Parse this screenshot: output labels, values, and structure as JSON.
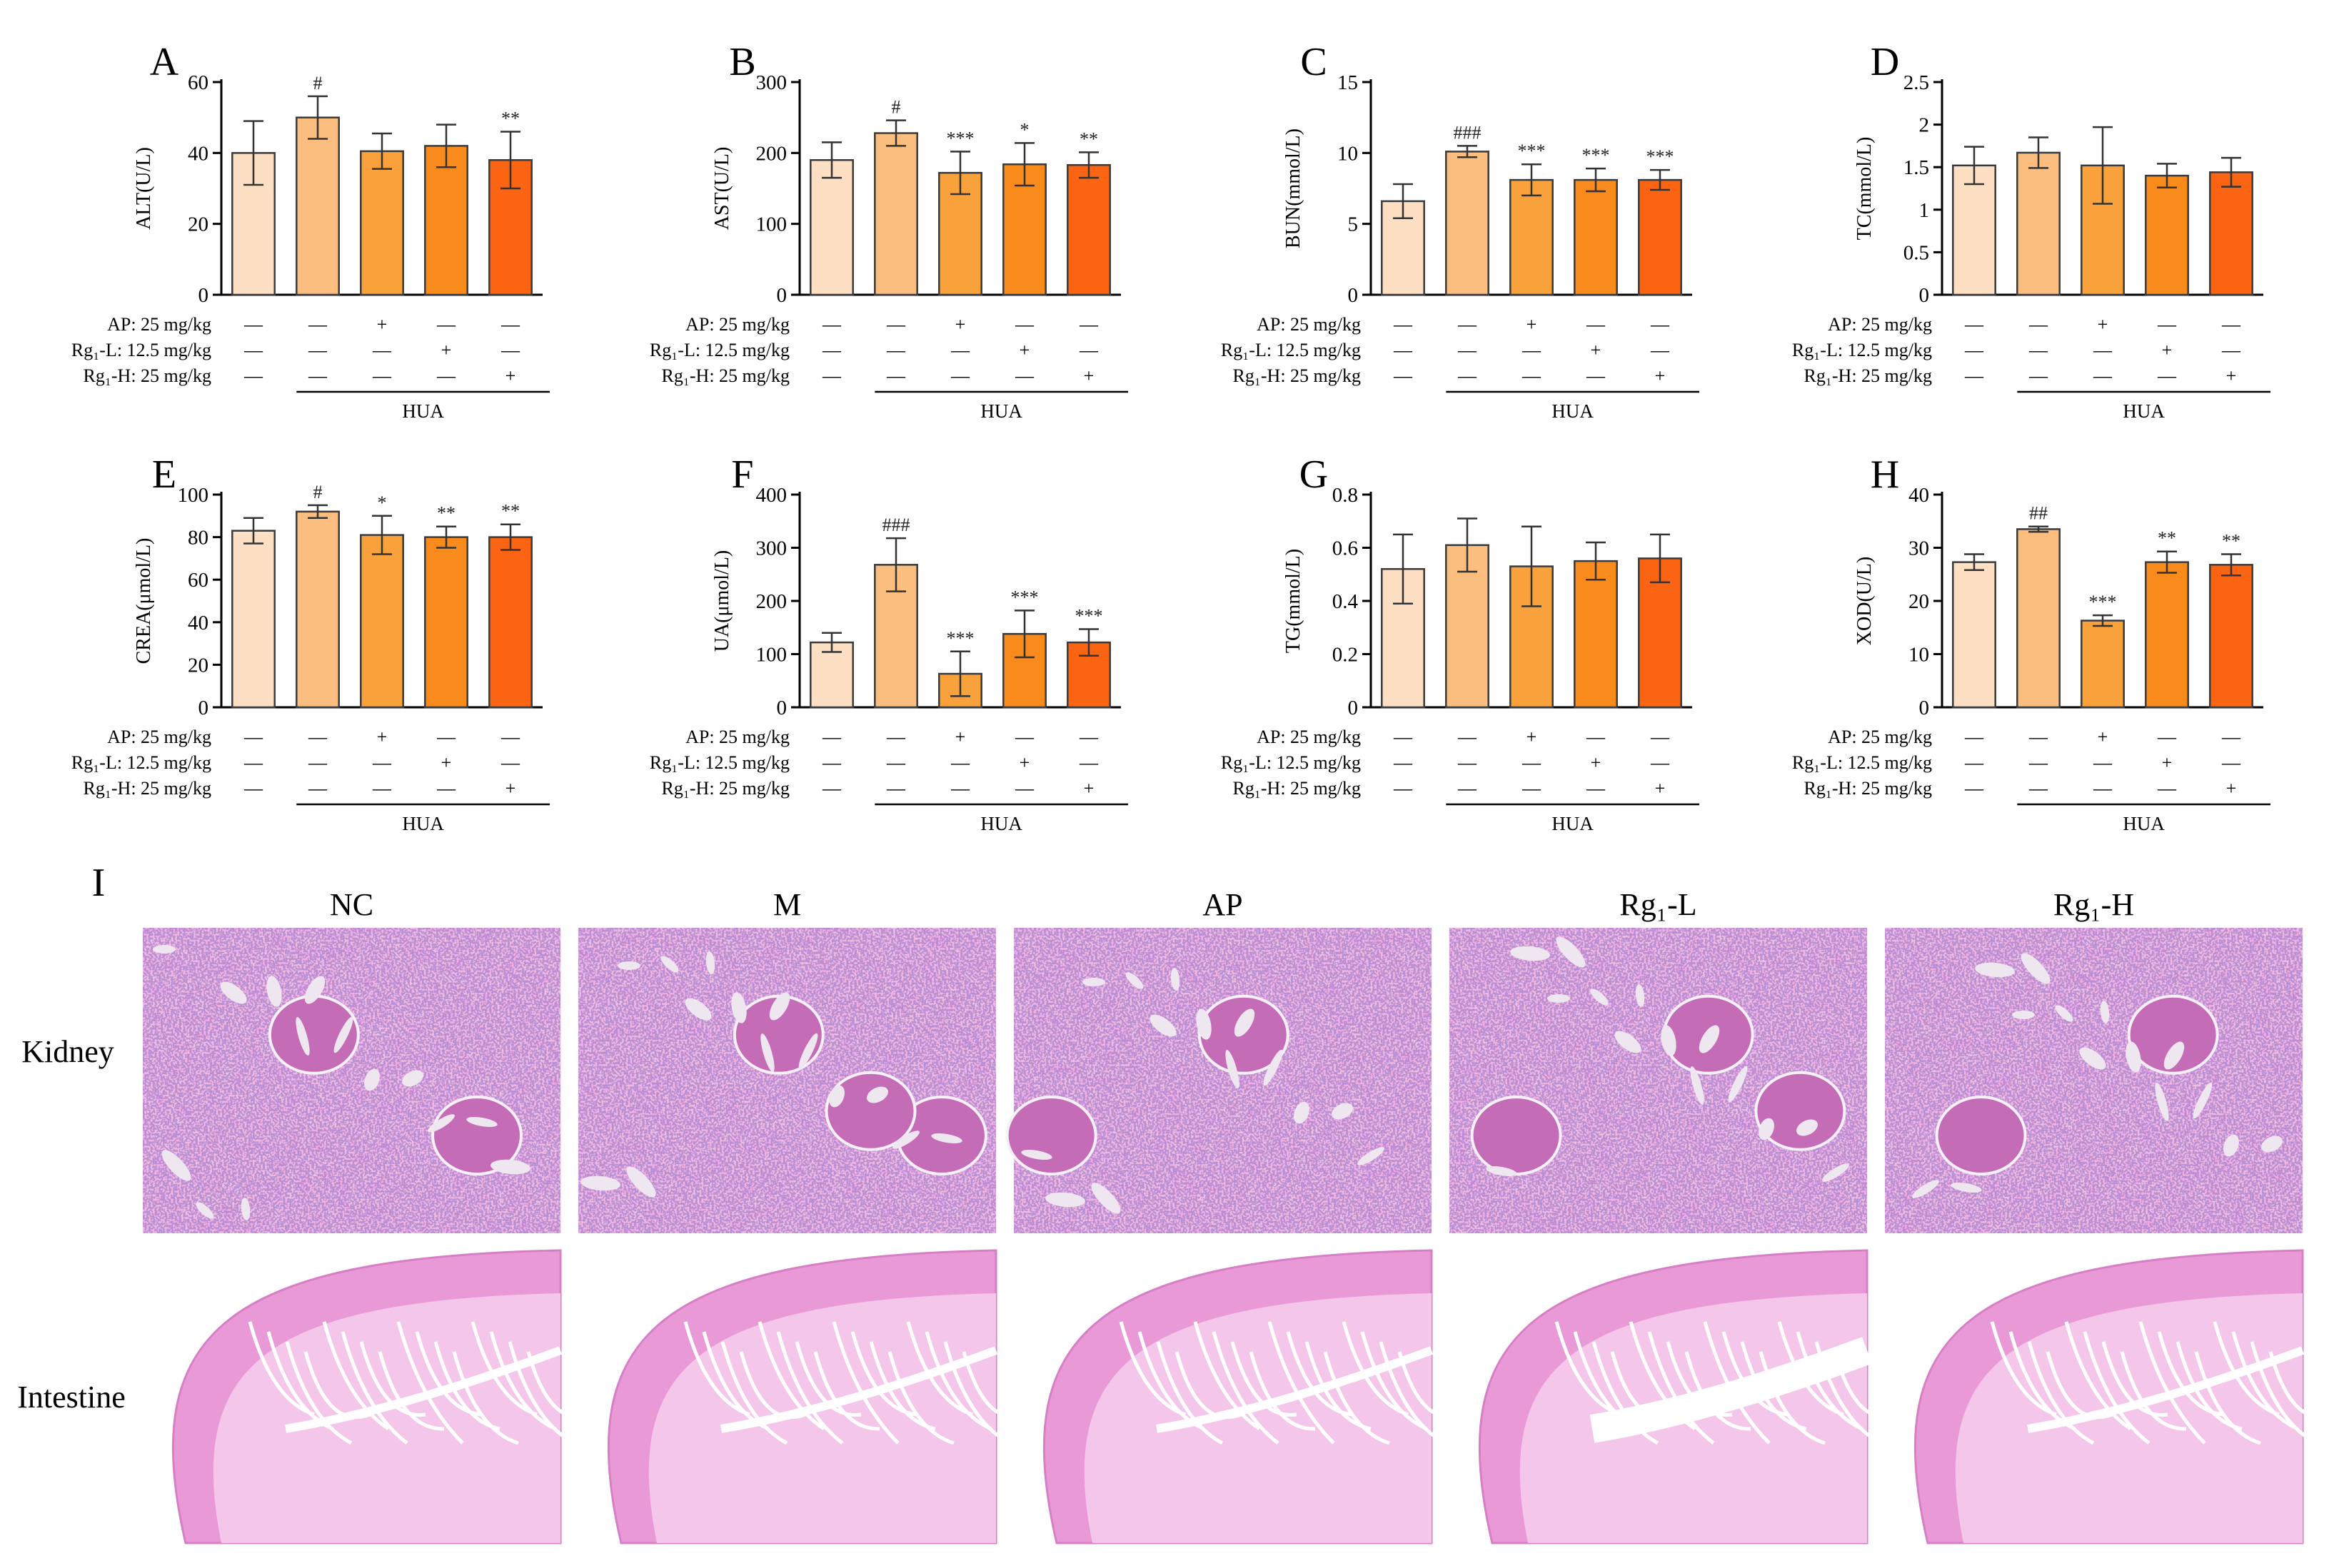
{
  "colors": [
    "#FDE0C4",
    "#FBBE7E",
    "#F9A13A",
    "#F98A1C",
    "#FB6412"
  ],
  "bar_stroke": "#3a3a3a",
  "treatment_rows": [
    "AP: 25 mg/kg",
    "Rg₁-L: 12.5 mg/kg",
    "Rg₁-H: 25 mg/kg"
  ],
  "treatment_signs": [
    [
      "—",
      "—",
      "+",
      "—",
      "—"
    ],
    [
      "—",
      "—",
      "—",
      "+",
      "—"
    ],
    [
      "—",
      "—",
      "—",
      "—",
      "+"
    ]
  ],
  "group_label": "HUA",
  "chart_data": [
    {
      "type": "bar",
      "panel": "A",
      "ylabel": "ALT(U/L)",
      "ylim": [
        0,
        60
      ],
      "yticks": [
        0,
        20,
        40,
        60
      ],
      "values": [
        40,
        50,
        40.5,
        42,
        38
      ],
      "errors": [
        9,
        6,
        5,
        6,
        8
      ],
      "sig": [
        "",
        "#",
        "",
        "",
        "**"
      ]
    },
    {
      "type": "bar",
      "panel": "B",
      "ylabel": "AST(U/L)",
      "ylim": [
        0,
        300
      ],
      "yticks": [
        0,
        100,
        200,
        300
      ],
      "values": [
        190,
        228,
        172,
        184,
        183
      ],
      "errors": [
        25,
        18,
        30,
        30,
        18
      ],
      "sig": [
        "",
        "#",
        "***",
        "*",
        "**"
      ]
    },
    {
      "type": "bar",
      "panel": "C",
      "ylabel": "BUN(mmol/L)",
      "ylim": [
        0,
        15
      ],
      "yticks": [
        0,
        5,
        10,
        15
      ],
      "values": [
        6.6,
        10.1,
        8.1,
        8.1,
        8.1
      ],
      "errors": [
        1.2,
        0.4,
        1.1,
        0.8,
        0.7
      ],
      "sig": [
        "",
        "###",
        "***",
        "***",
        "***"
      ]
    },
    {
      "type": "bar",
      "panel": "D",
      "ylabel": "TC(mmol/L)",
      "ylim": [
        0,
        2.5
      ],
      "yticks": [
        0,
        0.5,
        1.0,
        1.5,
        2.0,
        2.5
      ],
      "values": [
        1.52,
        1.67,
        1.52,
        1.4,
        1.44
      ],
      "errors": [
        0.22,
        0.18,
        0.45,
        0.14,
        0.17
      ],
      "sig": [
        "",
        "",
        "",
        "",
        ""
      ]
    },
    {
      "type": "bar",
      "panel": "E",
      "ylabel": "CREA(μmol/L)",
      "ylim": [
        0,
        100
      ],
      "yticks": [
        0,
        20,
        40,
        60,
        80,
        100
      ],
      "values": [
        83,
        92,
        81,
        80,
        80
      ],
      "errors": [
        6,
        3,
        9,
        5,
        6
      ],
      "sig": [
        "",
        "#",
        "*",
        "**",
        "**"
      ]
    },
    {
      "type": "bar",
      "panel": "F",
      "ylabel": "UA(μmol/L)",
      "ylim": [
        0,
        400
      ],
      "yticks": [
        0,
        100,
        200,
        300,
        400
      ],
      "values": [
        122,
        268,
        63,
        138,
        122
      ],
      "errors": [
        18,
        50,
        42,
        44,
        25
      ],
      "sig": [
        "",
        "###",
        "***",
        "***",
        "***"
      ]
    },
    {
      "type": "bar",
      "panel": "G",
      "ylabel": "TG(mmol/L)",
      "ylim": [
        0,
        0.8
      ],
      "yticks": [
        0,
        0.2,
        0.4,
        0.6,
        0.8
      ],
      "values": [
        0.52,
        0.61,
        0.53,
        0.55,
        0.56
      ],
      "errors": [
        0.13,
        0.1,
        0.15,
        0.07,
        0.09
      ],
      "sig": [
        "",
        "",
        "",
        "",
        ""
      ]
    },
    {
      "type": "bar",
      "panel": "H",
      "ylabel": "XOD(U/L)",
      "ylim": [
        0,
        40
      ],
      "yticks": [
        0,
        10,
        20,
        30,
        40
      ],
      "values": [
        27.3,
        33.5,
        16.3,
        27.3,
        26.8
      ],
      "errors": [
        1.5,
        0.5,
        1.0,
        2.0,
        2.0
      ],
      "sig": [
        "",
        "##",
        "***",
        "**",
        "**"
      ]
    }
  ],
  "histology": {
    "panel_label": "I",
    "groups": [
      "NC",
      "M",
      "AP",
      "Rg₁-L",
      "Rg₁-H"
    ],
    "rows": [
      "Kidney",
      "Intestine"
    ]
  }
}
